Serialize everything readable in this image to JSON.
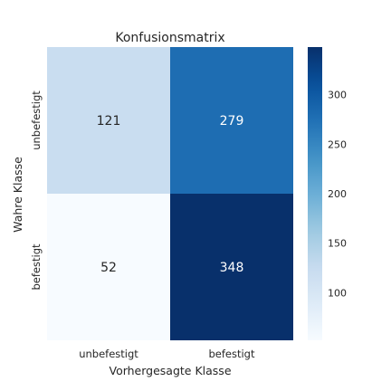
{
  "chart_data": {
    "type": "heatmap",
    "title": "Konfusionsmatrix",
    "xlabel": "Vorhergesagte Klasse",
    "ylabel": "Wahre Klasse",
    "x_categories": [
      "unbefestigt",
      "befestigt"
    ],
    "y_categories": [
      "unbefestigt",
      "befestigt"
    ],
    "values": [
      [
        121,
        279
      ],
      [
        52,
        348
      ]
    ],
    "colormap": "Blues",
    "colorbar": {
      "min": 52,
      "max": 348,
      "ticks": [
        100,
        150,
        200,
        250,
        300
      ]
    }
  }
}
